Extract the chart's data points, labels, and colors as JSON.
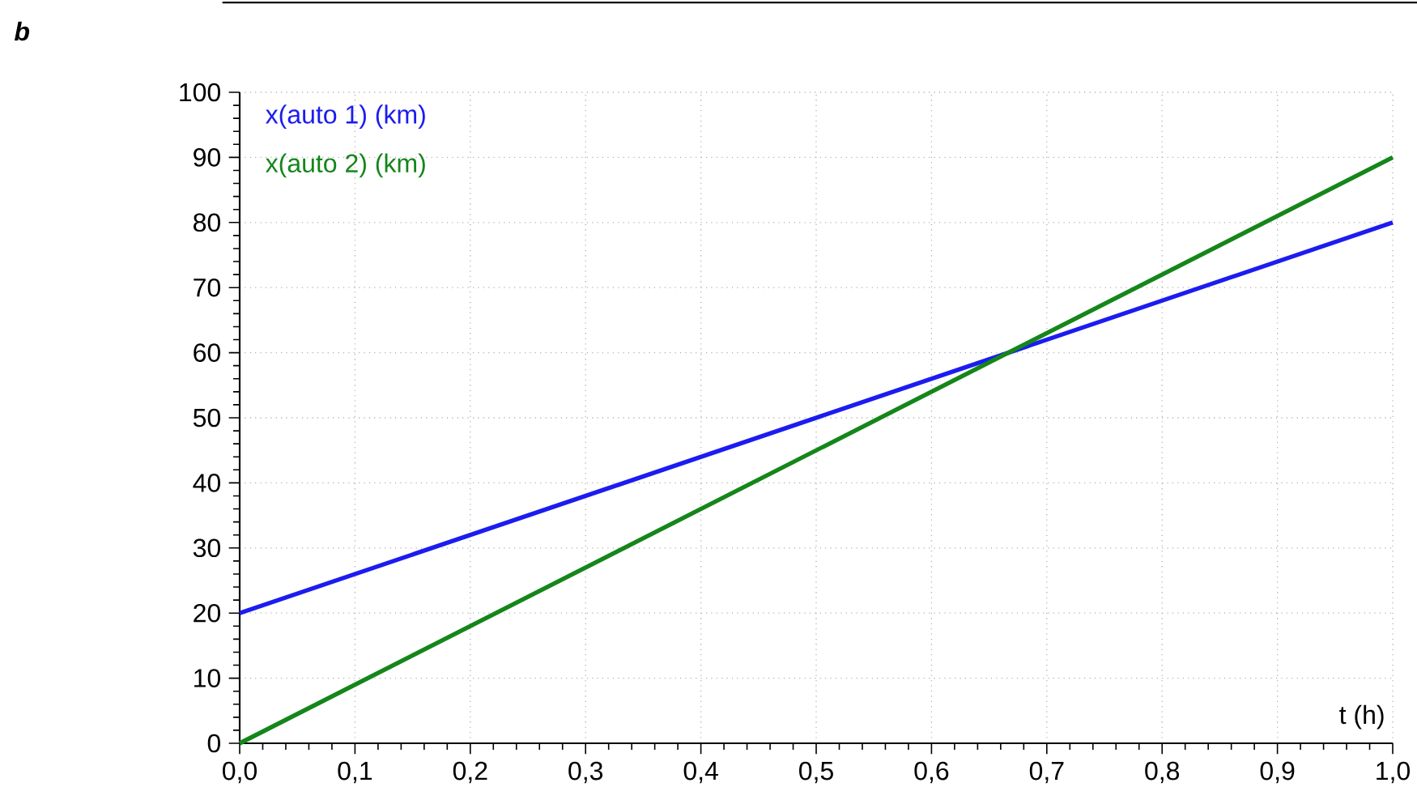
{
  "chart_data": {
    "type": "line",
    "title": "b",
    "xlabel": "t (h)",
    "x": [
      0,
      1
    ],
    "series": [
      {
        "name": "x(auto 1) (km)",
        "color": "#1c1cf0",
        "values": [
          20,
          80
        ]
      },
      {
        "name": "x(auto 2) (km)",
        "color": "#15861a",
        "values": [
          0,
          90
        ]
      }
    ],
    "xlim": [
      0,
      1
    ],
    "ylim": [
      0,
      100
    ],
    "xticks": [
      {
        "value": 0,
        "label": "0,0"
      },
      {
        "value": 0.1,
        "label": "0,1"
      },
      {
        "value": 0.2,
        "label": "0,2"
      },
      {
        "value": 0.3,
        "label": "0,3"
      },
      {
        "value": 0.4,
        "label": "0,4"
      },
      {
        "value": 0.5,
        "label": "0,5"
      },
      {
        "value": 0.6,
        "label": "0,6"
      },
      {
        "value": 0.7,
        "label": "0,7"
      },
      {
        "value": 0.8,
        "label": "0,8"
      },
      {
        "value": 0.9,
        "label": "0,9"
      },
      {
        "value": 1,
        "label": "1,0"
      }
    ],
    "yticks": [
      0,
      10,
      20,
      30,
      40,
      50,
      60,
      70,
      80,
      90,
      100
    ],
    "grid": true,
    "line_style": "solid",
    "marker": "none"
  }
}
